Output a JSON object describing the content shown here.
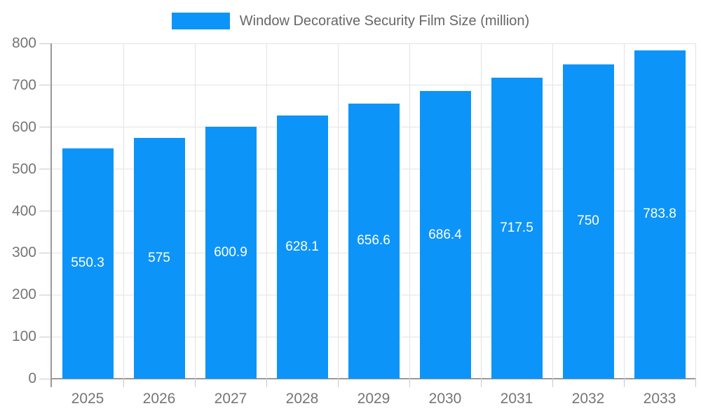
{
  "chart_data": {
    "type": "bar",
    "title": "Window Decorative Security Film Size (million)",
    "categories": [
      "2025",
      "2026",
      "2027",
      "2028",
      "2029",
      "2030",
      "2031",
      "2032",
      "2033"
    ],
    "values": [
      550.3,
      575,
      600.9,
      628.1,
      656.6,
      686.4,
      717.5,
      750,
      783.8
    ],
    "value_labels": [
      "550.3",
      "575",
      "600.9",
      "628.1",
      "656.6",
      "686.4",
      "717.5",
      "750",
      "783.8"
    ],
    "xlabel": "",
    "ylabel": "",
    "ylim": [
      0,
      800
    ],
    "y_ticks": [
      0,
      100,
      200,
      300,
      400,
      500,
      600,
      700,
      800
    ],
    "grid": true,
    "legend_position": "top"
  },
  "colors": {
    "bar": "#0d94f8",
    "bar_value_text": "#ffffff",
    "legend_text": "#666666",
    "tick_label": "#757575",
    "axis_line": "#999999",
    "gridline": "#e3e3e3",
    "tick_mark": "#c9c9c9",
    "background": "#ffffff"
  }
}
